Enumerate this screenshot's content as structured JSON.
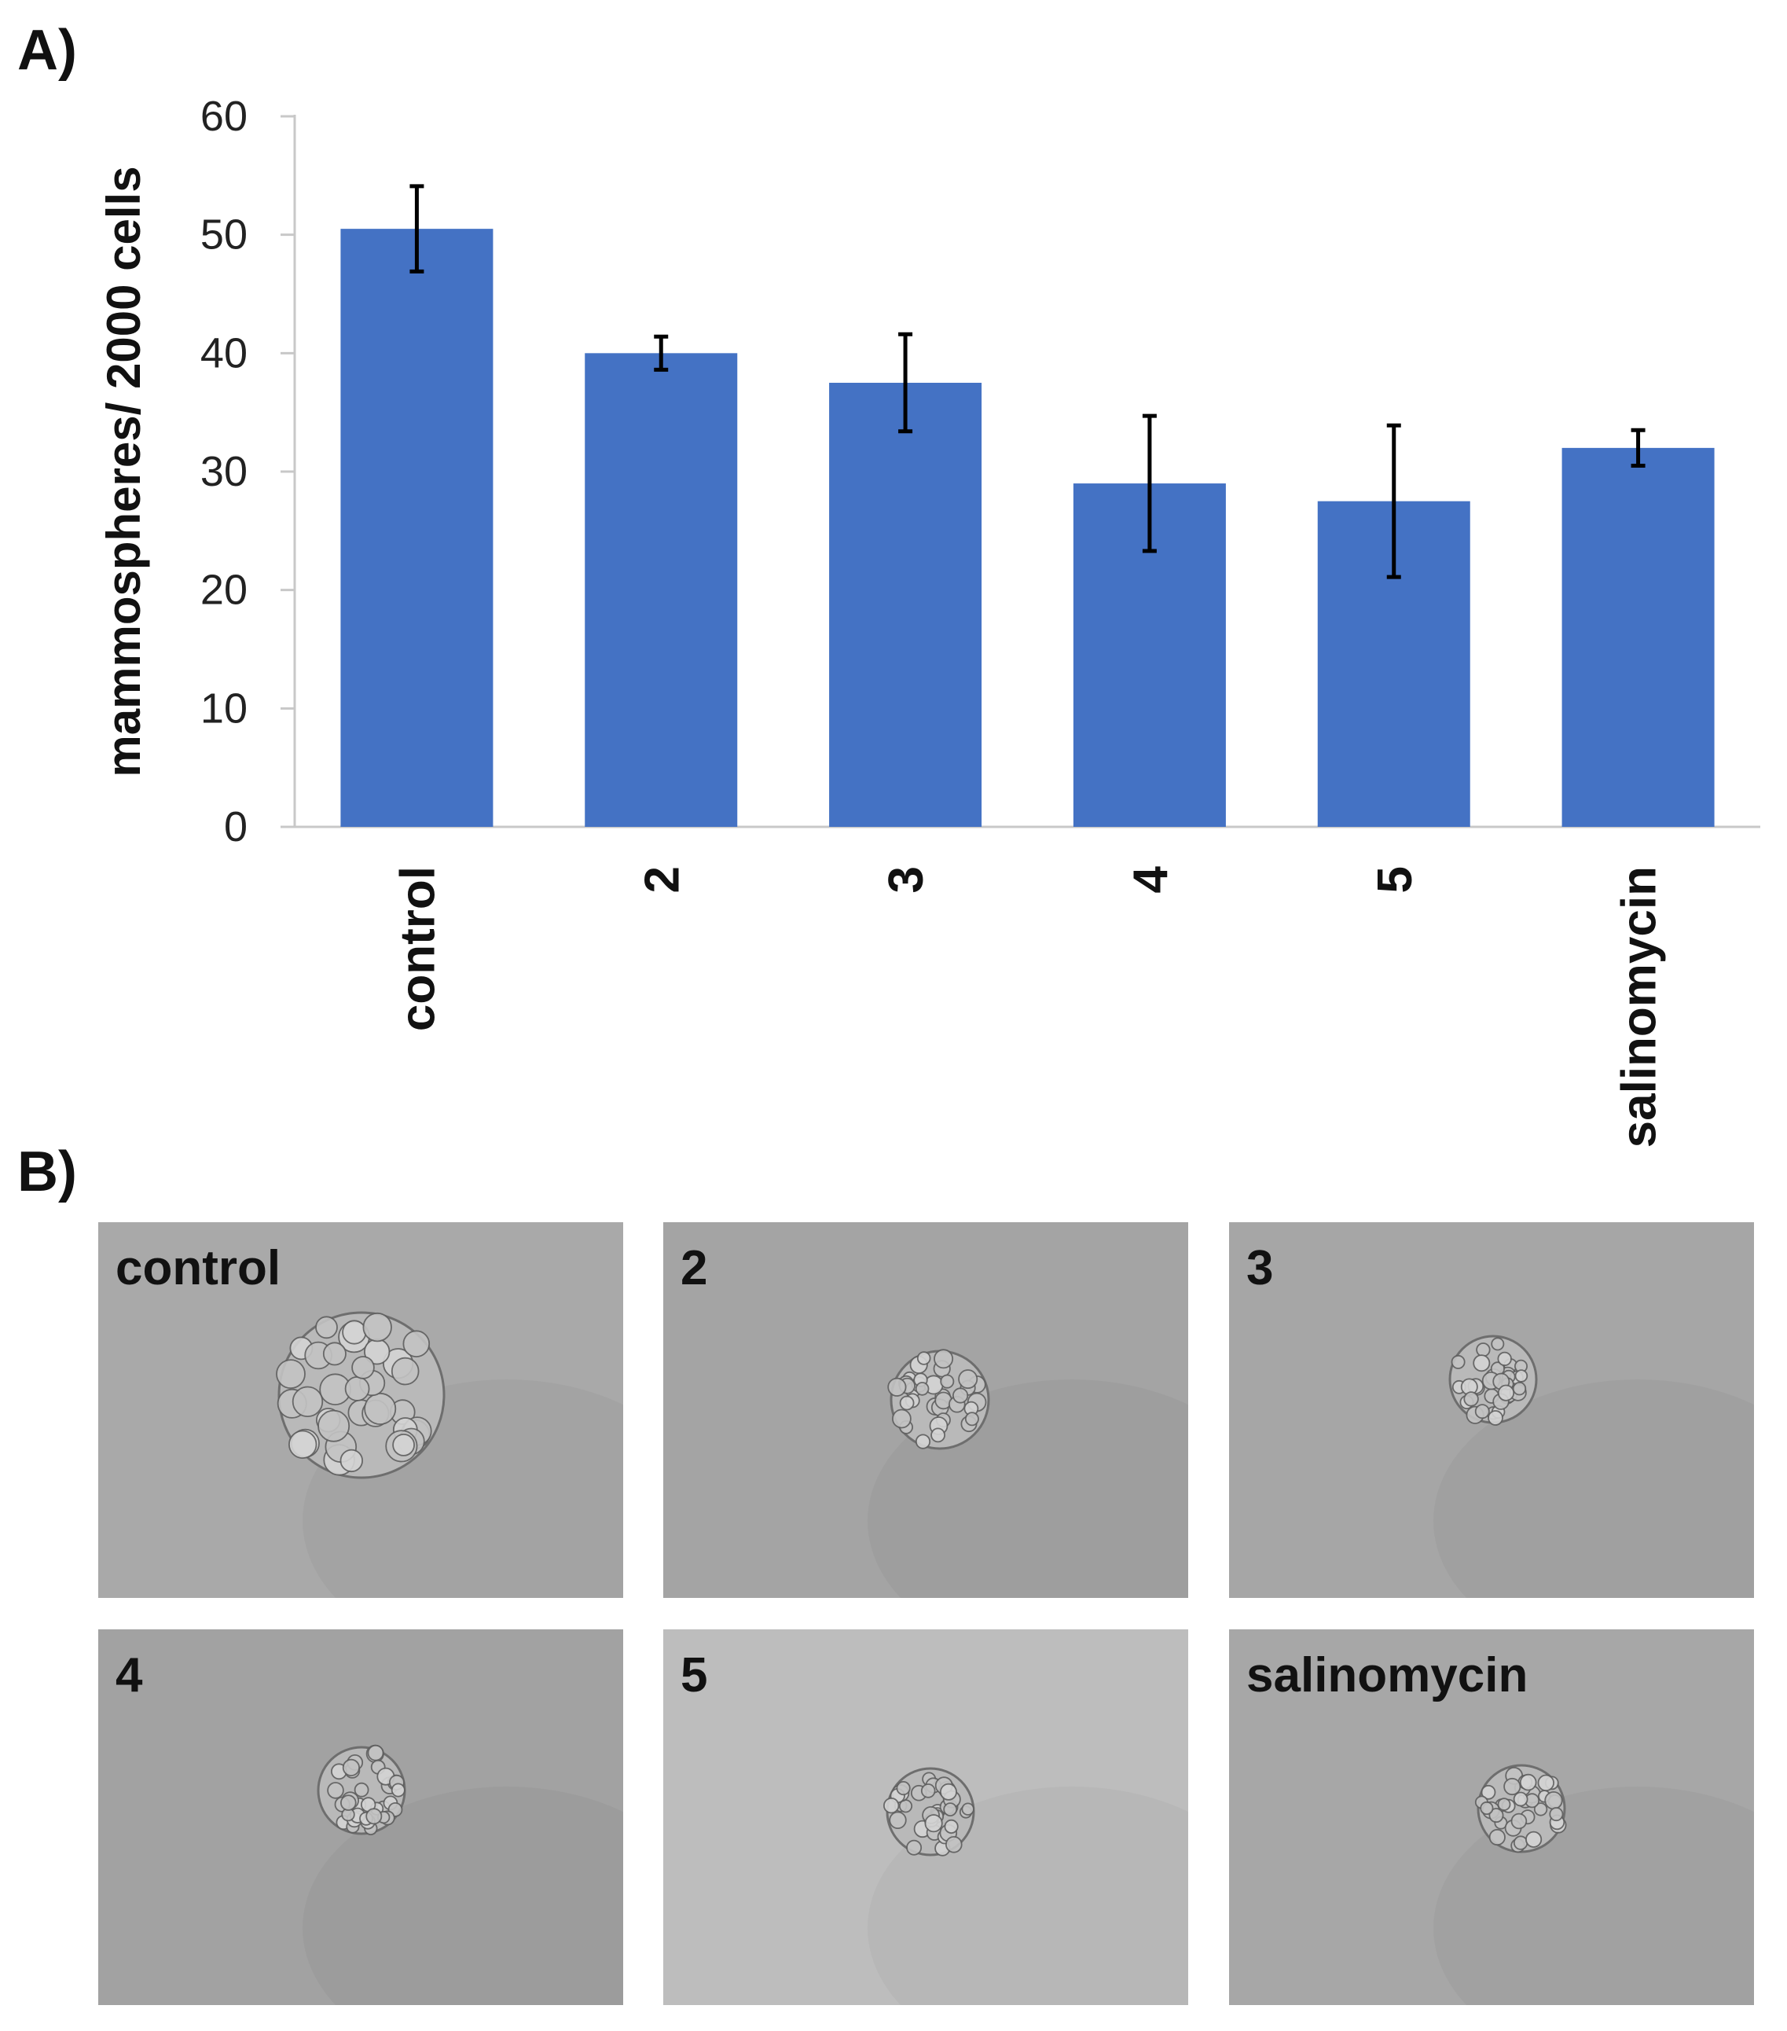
{
  "panel_a_label": "A)",
  "panel_b_label": "B)",
  "chart_data": {
    "type": "bar",
    "categories": [
      "control",
      "2",
      "3",
      "4",
      "5",
      "salinomycin"
    ],
    "values": [
      50.5,
      40,
      37.5,
      29,
      27.5,
      32
    ],
    "error": [
      3.6,
      1.4,
      4.1,
      5.7,
      6.4,
      1.5
    ],
    "ylabel": "mammospheres/ 2000 cells",
    "ylim": [
      0,
      60
    ],
    "yticks": [
      0,
      10,
      20,
      30,
      40,
      50,
      60
    ],
    "bar_color": "#4472C4",
    "grid": false,
    "legend": "none"
  },
  "micrographs": [
    {
      "label": "control",
      "tone": "#a9a9a9",
      "size": "large"
    },
    {
      "label": "2",
      "tone": "#a4a4a4",
      "size": "medium"
    },
    {
      "label": "3",
      "tone": "#a6a6a6",
      "size": "small"
    },
    {
      "label": "4",
      "tone": "#a2a2a2",
      "size": "small"
    },
    {
      "label": "5",
      "tone": "#bdbdbd",
      "size": "small"
    },
    {
      "label": "salinomycin",
      "tone": "#a7a7a7",
      "size": "small"
    }
  ]
}
